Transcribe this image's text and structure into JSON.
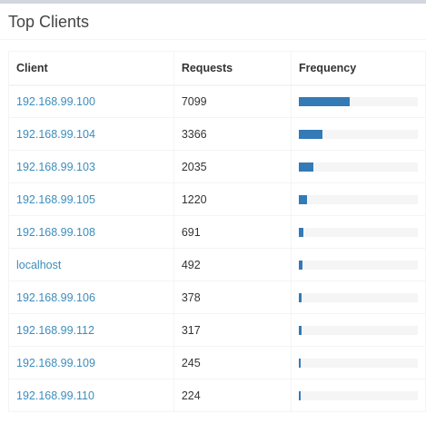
{
  "panel": {
    "title": "Top Clients"
  },
  "table": {
    "headers": [
      "Client",
      "Requests",
      "Frequency"
    ],
    "rows": [
      {
        "client": "192.168.99.100",
        "requests": "7099",
        "frequency_pct": 43
      },
      {
        "client": "192.168.99.104",
        "requests": "3366",
        "frequency_pct": 20
      },
      {
        "client": "192.168.99.103",
        "requests": "2035",
        "frequency_pct": 12
      },
      {
        "client": "192.168.99.105",
        "requests": "1220",
        "frequency_pct": 7
      },
      {
        "client": "192.168.99.108",
        "requests": "691",
        "frequency_pct": 4
      },
      {
        "client": "localhost",
        "requests": "492",
        "frequency_pct": 3
      },
      {
        "client": "192.168.99.106",
        "requests": "378",
        "frequency_pct": 2
      },
      {
        "client": "192.168.99.112",
        "requests": "317",
        "frequency_pct": 2
      },
      {
        "client": "192.168.99.109",
        "requests": "245",
        "frequency_pct": 1
      },
      {
        "client": "192.168.99.110",
        "requests": "224",
        "frequency_pct": 1
      }
    ]
  },
  "colors": {
    "link": "#3c8dbc",
    "bar": "#337ab7",
    "bar_track": "#f5f5f5"
  }
}
